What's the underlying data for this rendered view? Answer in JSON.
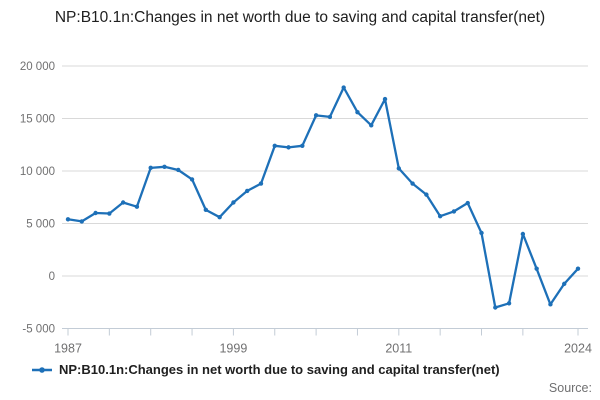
{
  "title": "NP:B10.1n:Changes in net worth due to saving and capital transfer(net)",
  "legend": {
    "label": "NP:B10.1n:Changes in net worth due to saving and capital transfer(net)"
  },
  "footer": {
    "source_label": "Source:"
  },
  "colors": {
    "line": "#1d70b8",
    "grid": "#d9d9d9",
    "axis": "#c3ccd6",
    "tick_label": "#707071",
    "title_text": "#202020",
    "legend_text": "#202020",
    "source_text": "#707071"
  },
  "chart_data": {
    "type": "line",
    "title": "NP:B10.1n:Changes in net worth due to saving and capital transfer(net)",
    "xlabel": "",
    "ylabel": "",
    "grid": "horizontal",
    "legend_position": "bottom-left",
    "marker": "circle",
    "ylim": [
      -5000,
      20000
    ],
    "xlim": [
      1987,
      2024
    ],
    "ytick_values": [
      20000,
      15000,
      10000,
      5000,
      0,
      -5000
    ],
    "ytick_labels": [
      "20 000",
      "15 000",
      "10 000",
      "5 000",
      "0",
      "-5 000"
    ],
    "xtick_years": [
      1987,
      1990,
      1993,
      1996,
      1999,
      2002,
      2005,
      2008,
      2011,
      2014,
      2017,
      2020,
      2024
    ],
    "xtick_labeled_years": [
      1987,
      1999,
      2011,
      2024
    ],
    "x": [
      1987,
      1988,
      1989,
      1990,
      1991,
      1992,
      1993,
      1994,
      1995,
      1996,
      1997,
      1998,
      1999,
      2000,
      2001,
      2002,
      2003,
      2004,
      2005,
      2006,
      2007,
      2008,
      2009,
      2010,
      2011,
      2012,
      2013,
      2014,
      2015,
      2016,
      2017,
      2018,
      2019,
      2020,
      2021,
      2022,
      2023,
      2024
    ],
    "series": [
      {
        "name": "NP:B10.1n:Changes in net worth due to saving and capital transfer(net)",
        "values": [
          5400,
          5200,
          6000,
          5950,
          7000,
          6600,
          10300,
          10400,
          10100,
          9200,
          6300,
          5600,
          7000,
          8100,
          8800,
          12400,
          12250,
          12400,
          15300,
          15150,
          17950,
          15600,
          14350,
          16850,
          10250,
          8800,
          7750,
          5700,
          6150,
          6950,
          4100,
          -3000,
          -2600,
          4000,
          700,
          -2700,
          -750,
          700
        ]
      }
    ]
  }
}
